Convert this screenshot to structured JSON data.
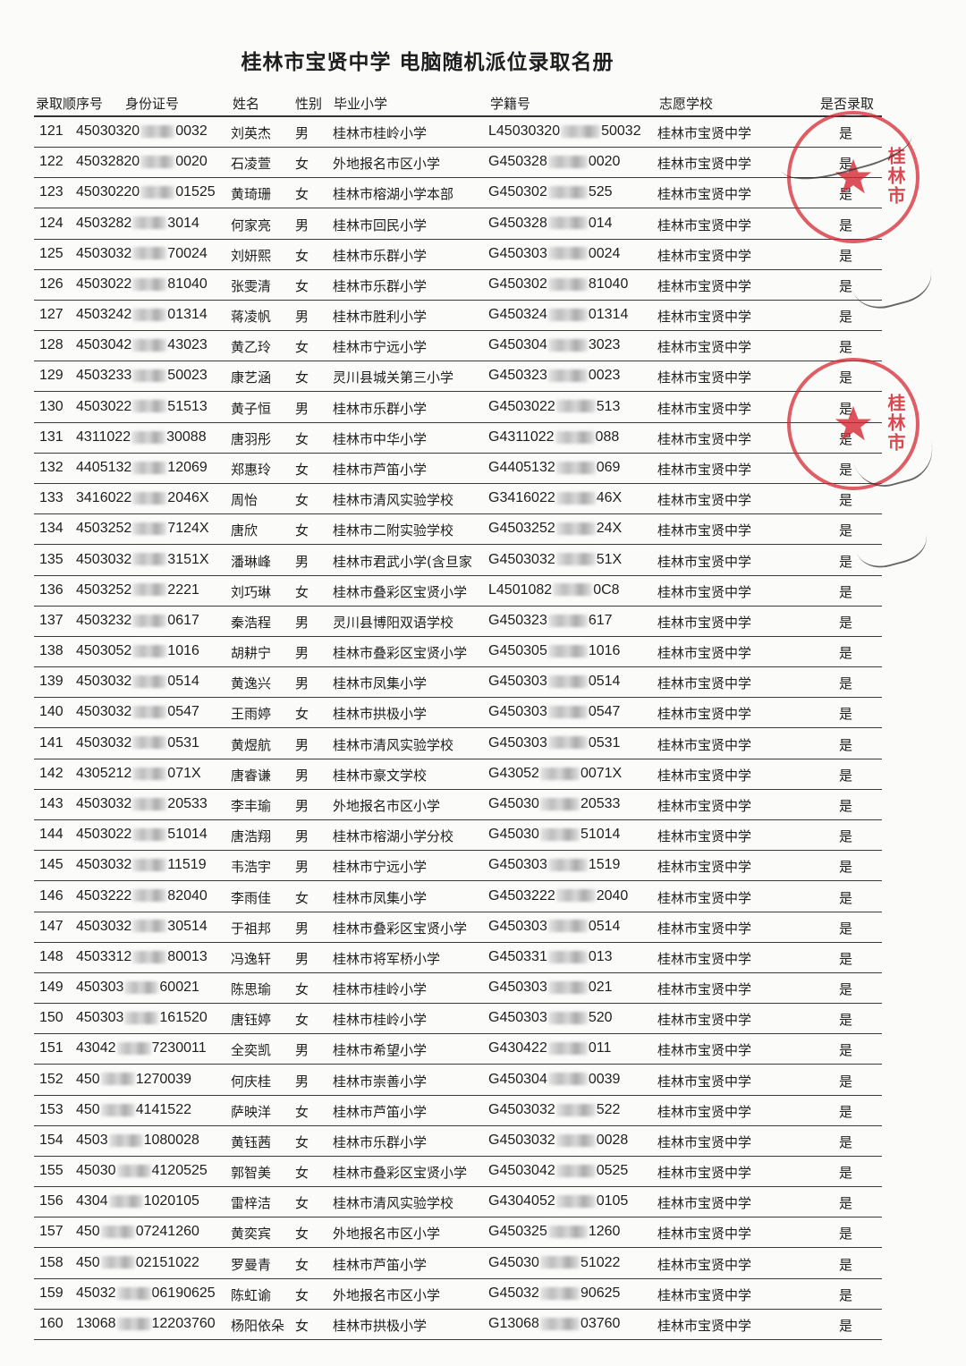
{
  "title": "桂林市宝贤中学  电脑随机派位录取名册",
  "headers": {
    "seq": "录取顺序号",
    "id": "身份证号",
    "name": "姓名",
    "gender": "性别",
    "school": "毕业小学",
    "xueji": "学籍号",
    "target": "志愿学校",
    "admitted": "是否录取"
  },
  "stamp": {
    "text": "桂林市",
    "color": "#d62832"
  },
  "rows": [
    {
      "seq": "121",
      "id_pre": "45030320",
      "id_suf": "0032",
      "name": "刘英杰",
      "gender": "男",
      "school": "桂林市桂岭小学",
      "xj_pre": "L45030320",
      "xj_suf": "50032",
      "target": "桂林市宝贤中学",
      "admitted": "是"
    },
    {
      "seq": "122",
      "id_pre": "45032820",
      "id_suf": "0020",
      "name": "石凌萱",
      "gender": "女",
      "school": "外地报名市区小学",
      "xj_pre": "G450328",
      "xj_suf": "0020",
      "target": "桂林市宝贤中学",
      "admitted": "是"
    },
    {
      "seq": "123",
      "id_pre": "45030220",
      "id_suf": "01525",
      "name": "黄琦珊",
      "gender": "女",
      "school": "桂林市榕湖小学本部",
      "xj_pre": "G450302",
      "xj_suf": "525",
      "target": "桂林市宝贤中学",
      "admitted": "是"
    },
    {
      "seq": "124",
      "id_pre": "4503282",
      "id_suf": "3014",
      "name": "何家亮",
      "gender": "男",
      "school": "桂林市回民小学",
      "xj_pre": "G450328",
      "xj_suf": "014",
      "target": "桂林市宝贤中学",
      "admitted": "是"
    },
    {
      "seq": "125",
      "id_pre": "4503032",
      "id_suf": "70024",
      "name": "刘妍熙",
      "gender": "女",
      "school": "桂林市乐群小学",
      "xj_pre": "G450303",
      "xj_suf": "0024",
      "target": "桂林市宝贤中学",
      "admitted": "是"
    },
    {
      "seq": "126",
      "id_pre": "4503022",
      "id_suf": "81040",
      "name": "张雯清",
      "gender": "女",
      "school": "桂林市乐群小学",
      "xj_pre": "G450302",
      "xj_suf": "81040",
      "target": "桂林市宝贤中学",
      "admitted": "是"
    },
    {
      "seq": "127",
      "id_pre": "4503242",
      "id_suf": "01314",
      "name": "蒋凌帆",
      "gender": "男",
      "school": "桂林市胜利小学",
      "xj_pre": "G450324",
      "xj_suf": "01314",
      "target": "桂林市宝贤中学",
      "admitted": "是"
    },
    {
      "seq": "128",
      "id_pre": "4503042",
      "id_suf": "43023",
      "name": "黄乙玲",
      "gender": "女",
      "school": "桂林市宁远小学",
      "xj_pre": "G450304",
      "xj_suf": "3023",
      "target": "桂林市宝贤中学",
      "admitted": "是"
    },
    {
      "seq": "129",
      "id_pre": "4503233",
      "id_suf": "50023",
      "name": "康艺涵",
      "gender": "女",
      "school": "灵川县城关第三小学",
      "xj_pre": "G450323",
      "xj_suf": "0023",
      "target": "桂林市宝贤中学",
      "admitted": "是"
    },
    {
      "seq": "130",
      "id_pre": "4503022",
      "id_suf": "51513",
      "name": "黄子恒",
      "gender": "男",
      "school": "桂林市乐群小学",
      "xj_pre": "G4503022",
      "xj_suf": "513",
      "target": "桂林市宝贤中学",
      "admitted": "是"
    },
    {
      "seq": "131",
      "id_pre": "4311022",
      "id_suf": "30088",
      "name": "唐羽彤",
      "gender": "女",
      "school": "桂林市中华小学",
      "xj_pre": "G4311022",
      "xj_suf": "088",
      "target": "桂林市宝贤中学",
      "admitted": "是"
    },
    {
      "seq": "132",
      "id_pre": "4405132",
      "id_suf": "12069",
      "name": "郑惠玲",
      "gender": "女",
      "school": "桂林市芦笛小学",
      "xj_pre": "G4405132",
      "xj_suf": "069",
      "target": "桂林市宝贤中学",
      "admitted": "是"
    },
    {
      "seq": "133",
      "id_pre": "3416022",
      "id_suf": "2046X",
      "name": "周怡",
      "gender": "女",
      "school": "桂林市清风实验学校",
      "xj_pre": "G3416022",
      "xj_suf": "46X",
      "target": "桂林市宝贤中学",
      "admitted": "是"
    },
    {
      "seq": "134",
      "id_pre": "4503252",
      "id_suf": "7124X",
      "name": "唐欣",
      "gender": "女",
      "school": "桂林市二附实验学校",
      "xj_pre": "G4503252",
      "xj_suf": "24X",
      "target": "桂林市宝贤中学",
      "admitted": "是"
    },
    {
      "seq": "135",
      "id_pre": "4503032",
      "id_suf": "3151X",
      "name": "潘琳峰",
      "gender": "男",
      "school": "桂林市君武小学(含旦家",
      "xj_pre": "G4503032",
      "xj_suf": "51X",
      "target": "桂林市宝贤中学",
      "admitted": "是"
    },
    {
      "seq": "136",
      "id_pre": "4503252",
      "id_suf": "2221",
      "name": "刘巧琳",
      "gender": "女",
      "school": "桂林市叠彩区宝贤小学",
      "xj_pre": "L4501082",
      "xj_suf": "0C8",
      "target": "桂林市宝贤中学",
      "admitted": "是"
    },
    {
      "seq": "137",
      "id_pre": "4503232",
      "id_suf": "0617",
      "name": "秦浩程",
      "gender": "男",
      "school": "灵川县博阳双语学校",
      "xj_pre": "G450323",
      "xj_suf": "617",
      "target": "桂林市宝贤中学",
      "admitted": "是"
    },
    {
      "seq": "138",
      "id_pre": "4503052",
      "id_suf": "1016",
      "name": "胡耕宁",
      "gender": "男",
      "school": "桂林市叠彩区宝贤小学",
      "xj_pre": "G450305",
      "xj_suf": "1016",
      "target": "桂林市宝贤中学",
      "admitted": "是"
    },
    {
      "seq": "139",
      "id_pre": "4503032",
      "id_suf": "0514",
      "name": "黄逸兴",
      "gender": "男",
      "school": "桂林市凤集小学",
      "xj_pre": "G450303",
      "xj_suf": "0514",
      "target": "桂林市宝贤中学",
      "admitted": "是"
    },
    {
      "seq": "140",
      "id_pre": "4503032",
      "id_suf": "0547",
      "name": "王雨婷",
      "gender": "女",
      "school": "桂林市拱极小学",
      "xj_pre": "G450303",
      "xj_suf": "0547",
      "target": "桂林市宝贤中学",
      "admitted": "是"
    },
    {
      "seq": "141",
      "id_pre": "4503032",
      "id_suf": "0531",
      "name": "黄煜航",
      "gender": "男",
      "school": "桂林市清风实验学校",
      "xj_pre": "G450303",
      "xj_suf": "0531",
      "target": "桂林市宝贤中学",
      "admitted": "是"
    },
    {
      "seq": "142",
      "id_pre": "4305212",
      "id_suf": "071X",
      "name": "唐睿谦",
      "gender": "男",
      "school": "桂林市豪文学校",
      "xj_pre": "G43052",
      "xj_suf": "0071X",
      "target": "桂林市宝贤中学",
      "admitted": "是"
    },
    {
      "seq": "143",
      "id_pre": "4503032",
      "id_suf": "20533",
      "name": "李丰瑜",
      "gender": "男",
      "school": "外地报名市区小学",
      "xj_pre": "G45030",
      "xj_suf": "20533",
      "target": "桂林市宝贤中学",
      "admitted": "是"
    },
    {
      "seq": "144",
      "id_pre": "4503022",
      "id_suf": "51014",
      "name": "唐浩翔",
      "gender": "男",
      "school": "桂林市榕湖小学分校",
      "xj_pre": "G45030",
      "xj_suf": "51014",
      "target": "桂林市宝贤中学",
      "admitted": "是"
    },
    {
      "seq": "145",
      "id_pre": "4503032",
      "id_suf": "11519",
      "name": "韦浩宇",
      "gender": "男",
      "school": "桂林市宁远小学",
      "xj_pre": "G450303",
      "xj_suf": "1519",
      "target": "桂林市宝贤中学",
      "admitted": "是"
    },
    {
      "seq": "146",
      "id_pre": "4503222",
      "id_suf": "82040",
      "name": "李雨佳",
      "gender": "女",
      "school": "桂林市凤集小学",
      "xj_pre": "G4503222",
      "xj_suf": "2040",
      "target": "桂林市宝贤中学",
      "admitted": "是"
    },
    {
      "seq": "147",
      "id_pre": "4503032",
      "id_suf": "30514",
      "name": "于祖邦",
      "gender": "男",
      "school": "桂林市叠彩区宝贤小学",
      "xj_pre": "G450303",
      "xj_suf": "0514",
      "target": "桂林市宝贤中学",
      "admitted": "是"
    },
    {
      "seq": "148",
      "id_pre": "4503312",
      "id_suf": "80013",
      "name": "冯逸轩",
      "gender": "男",
      "school": "桂林市将军桥小学",
      "xj_pre": "G450331",
      "xj_suf": "013",
      "target": "桂林市宝贤中学",
      "admitted": "是"
    },
    {
      "seq": "149",
      "id_pre": "450303",
      "id_suf": "60021",
      "name": "陈思瑜",
      "gender": "女",
      "school": "桂林市桂岭小学",
      "xj_pre": "G450303",
      "xj_suf": "021",
      "target": "桂林市宝贤中学",
      "admitted": "是"
    },
    {
      "seq": "150",
      "id_pre": "450303",
      "id_suf": "161520",
      "name": "唐钰婷",
      "gender": "女",
      "school": "桂林市桂岭小学",
      "xj_pre": "G450303",
      "xj_suf": "520",
      "target": "桂林市宝贤中学",
      "admitted": "是"
    },
    {
      "seq": "151",
      "id_pre": "43042",
      "id_suf": "7230011",
      "name": "全奕凯",
      "gender": "男",
      "school": "桂林市希望小学",
      "xj_pre": "G430422",
      "xj_suf": "011",
      "target": "桂林市宝贤中学",
      "admitted": "是"
    },
    {
      "seq": "152",
      "id_pre": "450",
      "id_suf": "1270039",
      "name": "何庆桂",
      "gender": "男",
      "school": "桂林市崇善小学",
      "xj_pre": "G450304",
      "xj_suf": "0039",
      "target": "桂林市宝贤中学",
      "admitted": "是"
    },
    {
      "seq": "153",
      "id_pre": "450",
      "id_suf": "4141522",
      "name": "萨映洋",
      "gender": "女",
      "school": "桂林市芦笛小学",
      "xj_pre": "G4503032",
      "xj_suf": "522",
      "target": "桂林市宝贤中学",
      "admitted": "是"
    },
    {
      "seq": "154",
      "id_pre": "4503",
      "id_suf": "1080028",
      "name": "黄钰茜",
      "gender": "女",
      "school": "桂林市乐群小学",
      "xj_pre": "G4503032",
      "xj_suf": "0028",
      "target": "桂林市宝贤中学",
      "admitted": "是"
    },
    {
      "seq": "155",
      "id_pre": "45030",
      "id_suf": "4120525",
      "name": "郭智美",
      "gender": "女",
      "school": "桂林市叠彩区宝贤小学",
      "xj_pre": "G4503042",
      "xj_suf": "0525",
      "target": "桂林市宝贤中学",
      "admitted": "是"
    },
    {
      "seq": "156",
      "id_pre": "4304",
      "id_suf": "1020105",
      "name": "雷梓洁",
      "gender": "女",
      "school": "桂林市清风实验学校",
      "xj_pre": "G4304052",
      "xj_suf": "0105",
      "target": "桂林市宝贤中学",
      "admitted": "是"
    },
    {
      "seq": "157",
      "id_pre": "450",
      "id_suf": "07241260",
      "name": "黄奕宾",
      "gender": "女",
      "school": "外地报名市区小学",
      "xj_pre": "G450325",
      "xj_suf": "1260",
      "target": "桂林市宝贤中学",
      "admitted": "是"
    },
    {
      "seq": "158",
      "id_pre": "450",
      "id_suf": "02151022",
      "name": "罗曼青",
      "gender": "女",
      "school": "桂林市芦笛小学",
      "xj_pre": "G45030",
      "xj_suf": "51022",
      "target": "桂林市宝贤中学",
      "admitted": "是"
    },
    {
      "seq": "159",
      "id_pre": "45032",
      "id_suf": "06190625",
      "name": "陈虹谕",
      "gender": "女",
      "school": "外地报名市区小学",
      "xj_pre": "G45032",
      "xj_suf": "90625",
      "target": "桂林市宝贤中学",
      "admitted": "是"
    },
    {
      "seq": "160",
      "id_pre": "13068",
      "id_suf": "12203760",
      "name": "杨阳依朵",
      "gender": "女",
      "school": "桂林市拱极小学",
      "xj_pre": "G13068",
      "xj_suf": "03760",
      "target": "桂林市宝贤中学",
      "admitted": "是"
    }
  ]
}
